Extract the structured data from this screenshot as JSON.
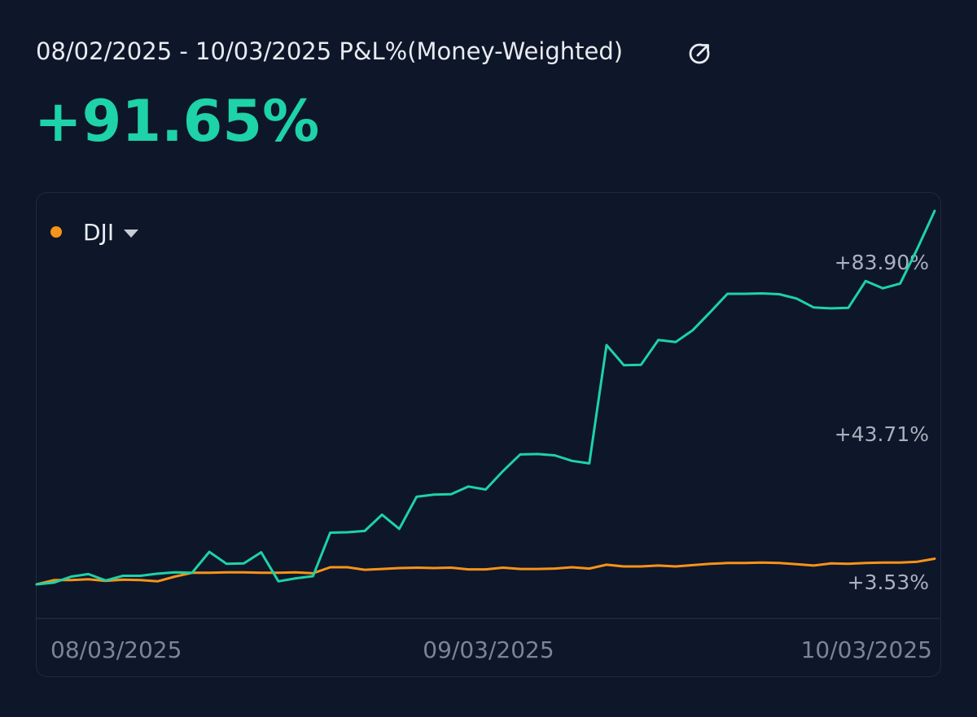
{
  "header": {
    "title": "08/02/2025 - 10/03/2025 P&L%(Money-Weighted)",
    "share_icon": "share-icon"
  },
  "headline": {
    "value": "+91.65%"
  },
  "legend": {
    "label": "DJI",
    "dot_color": "#f7931a"
  },
  "colors": {
    "portfolio": "#1dd3a7",
    "benchmark": "#f7931a",
    "background": "#0e1629"
  },
  "chart_data": {
    "type": "line",
    "x_ticks": [
      "08/03/2025",
      "09/03/2025",
      "10/03/2025"
    ],
    "y_tick_labels": [
      "+83.90%",
      "+43.71%",
      "+3.53%"
    ],
    "y_tick_values": [
      83.9,
      43.71,
      3.53
    ],
    "ylim": [
      3.53,
      83.9
    ],
    "grid": false,
    "series": [
      {
        "name": "",
        "color": "#1dd3a7",
        "values": [
          0,
          0.4,
          1.8,
          2.4,
          0.9,
          2.0,
          2.0,
          2.5,
          2.8,
          2.7,
          7.6,
          4.8,
          4.9,
          7.5,
          0.7,
          1.4,
          1.9,
          12.1,
          12.2,
          12.5,
          16.3,
          13.0,
          20.5,
          21.0,
          21.1,
          22.9,
          22.2,
          26.5,
          30.4,
          30.5,
          30.2,
          28.9,
          28.3,
          56.0,
          51.3,
          51.4,
          57.2,
          56.7,
          59.5,
          63.7,
          68.0,
          68.0,
          68.1,
          67.9,
          66.9,
          64.8,
          64.6,
          64.7,
          71.0,
          69.3,
          70.4,
          78.6,
          87.4
        ]
      },
      {
        "name": "DJI",
        "color": "#f7931a",
        "values": [
          0,
          1.0,
          1.0,
          1.2,
          0.8,
          1.1,
          1.0,
          0.7,
          1.8,
          2.7,
          2.7,
          2.8,
          2.8,
          2.7,
          2.7,
          2.8,
          2.6,
          4.0,
          4.0,
          3.4,
          3.6,
          3.8,
          3.9,
          3.8,
          3.9,
          3.5,
          3.5,
          3.9,
          3.6,
          3.6,
          3.7,
          4.0,
          3.7,
          4.6,
          4.2,
          4.2,
          4.4,
          4.2,
          4.5,
          4.8,
          5.0,
          5.0,
          5.1,
          5.0,
          4.7,
          4.4,
          4.9,
          4.8,
          5.0,
          5.1,
          5.1,
          5.3,
          6.0
        ]
      }
    ]
  }
}
